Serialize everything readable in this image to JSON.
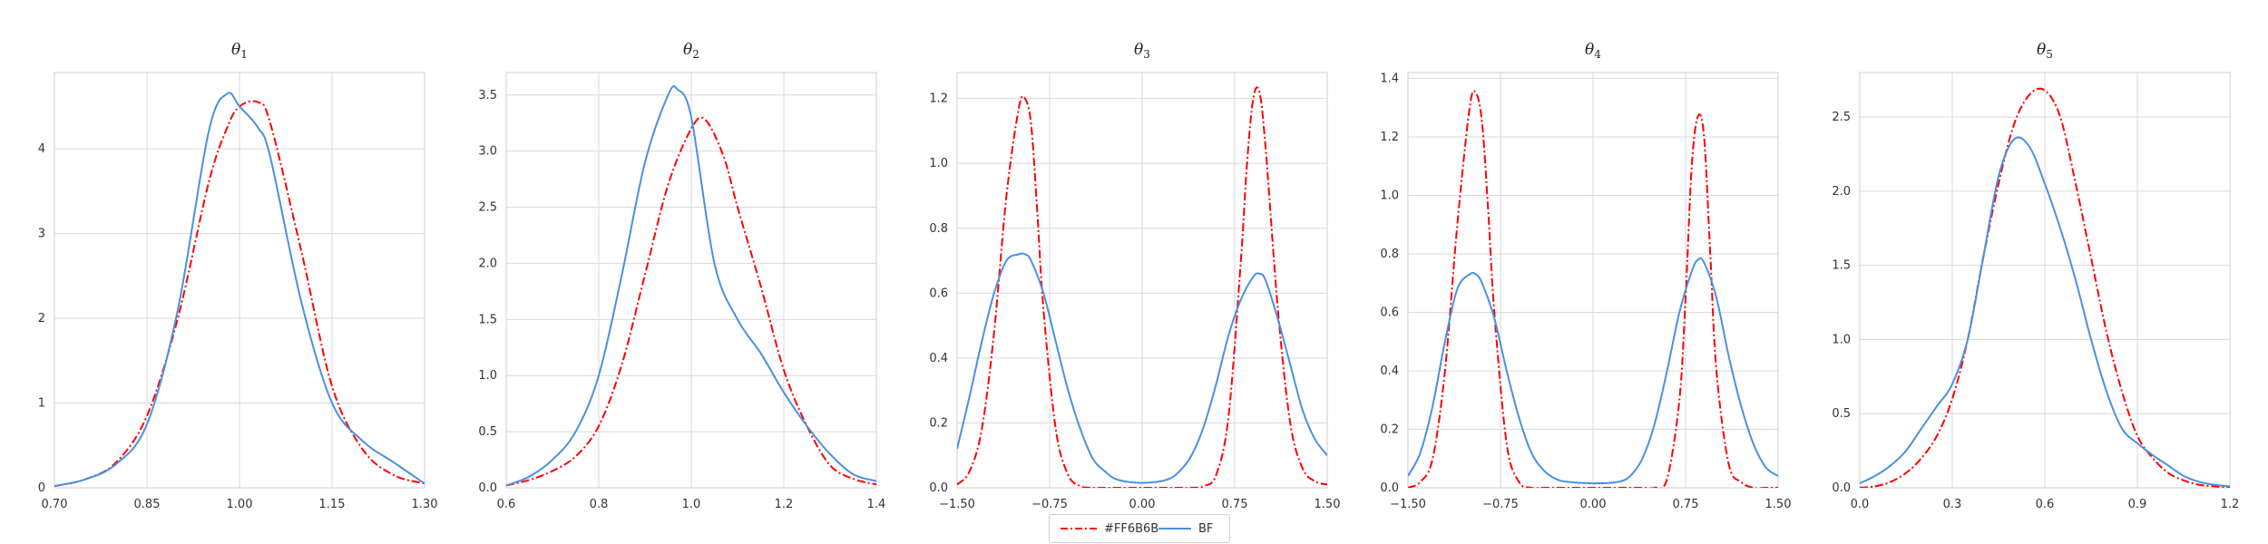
{
  "chart_data": [
    {
      "type": "line",
      "title": "θ1",
      "title_base": "θ",
      "title_sub": "1",
      "xlabel": "",
      "ylabel": "",
      "xlim": [
        0.7,
        1.3
      ],
      "ylim": [
        0,
        4.9
      ],
      "xticks": [
        0.7,
        0.85,
        1.0,
        1.15,
        1.3
      ],
      "xtick_labels": [
        "0.70",
        "0.85",
        "1.00",
        "1.15",
        "1.30"
      ],
      "yticks": [
        0,
        1,
        2,
        3,
        4
      ],
      "ytick_labels": [
        "0",
        "1",
        "2",
        "3",
        "4"
      ],
      "grid": true,
      "series": [
        {
          "name": "#FF6B6B",
          "color": "#ff0000",
          "style": "dashdot",
          "x": [
            0.7,
            0.75,
            0.8,
            0.85,
            0.9,
            0.95,
            0.98,
            1.0,
            1.03,
            1.05,
            1.1,
            1.15,
            1.2,
            1.25,
            1.3
          ],
          "y": [
            0.02,
            0.1,
            0.3,
            0.85,
            2.0,
            3.6,
            4.25,
            4.5,
            4.55,
            4.3,
            2.8,
            1.2,
            0.45,
            0.15,
            0.05
          ]
        },
        {
          "name": "BF",
          "color": "#4a90e2",
          "style": "solid",
          "x": [
            0.7,
            0.75,
            0.8,
            0.85,
            0.9,
            0.95,
            0.98,
            1.0,
            1.03,
            1.05,
            1.1,
            1.15,
            1.2,
            1.25,
            1.3
          ],
          "y": [
            0.02,
            0.1,
            0.28,
            0.75,
            2.1,
            4.2,
            4.65,
            4.5,
            4.25,
            3.9,
            2.2,
            1.0,
            0.55,
            0.3,
            0.05
          ]
        }
      ]
    },
    {
      "type": "line",
      "title": "θ2",
      "title_base": "θ",
      "title_sub": "2",
      "xlabel": "",
      "ylabel": "",
      "xlim": [
        0.6,
        1.4
      ],
      "ylim": [
        0,
        3.7
      ],
      "xticks": [
        0.6,
        0.8,
        1.0,
        1.2,
        1.4
      ],
      "xtick_labels": [
        "0.6",
        "0.8",
        "1.0",
        "1.2",
        "1.4"
      ],
      "yticks": [
        0,
        0.5,
        1.0,
        1.5,
        2.0,
        2.5,
        3.0,
        3.5
      ],
      "ytick_labels": [
        "0.0",
        "0.5",
        "1.0",
        "1.5",
        "2.0",
        "2.5",
        "3.0",
        "3.5"
      ],
      "grid": true,
      "series": [
        {
          "name": "#FF6B6B",
          "color": "#ff0000",
          "style": "dashdot",
          "x": [
            0.6,
            0.65,
            0.7,
            0.75,
            0.8,
            0.85,
            0.9,
            0.95,
            1.0,
            1.03,
            1.07,
            1.1,
            1.15,
            1.2,
            1.25,
            1.3,
            1.35,
            1.4
          ],
          "y": [
            0.02,
            0.07,
            0.15,
            0.28,
            0.55,
            1.1,
            1.9,
            2.7,
            3.2,
            3.28,
            2.95,
            2.5,
            1.8,
            1.05,
            0.55,
            0.2,
            0.08,
            0.03
          ]
        },
        {
          "name": "BF",
          "color": "#4a90e2",
          "style": "solid",
          "x": [
            0.6,
            0.65,
            0.7,
            0.75,
            0.8,
            0.85,
            0.9,
            0.95,
            0.97,
            1.0,
            1.05,
            1.1,
            1.15,
            1.2,
            1.25,
            1.3,
            1.35,
            1.4
          ],
          "y": [
            0.02,
            0.1,
            0.25,
            0.5,
            1.0,
            1.9,
            2.9,
            3.5,
            3.55,
            3.3,
            2.0,
            1.5,
            1.2,
            0.85,
            0.55,
            0.3,
            0.12,
            0.06
          ]
        }
      ]
    },
    {
      "type": "line",
      "title": "θ3",
      "title_base": "θ",
      "title_sub": "3",
      "xlabel": "",
      "ylabel": "",
      "xlim": [
        -1.5,
        1.5
      ],
      "ylim": [
        0,
        1.28
      ],
      "xticks": [
        -1.5,
        -0.75,
        0.0,
        0.75,
        1.5
      ],
      "xtick_labels": [
        "−1.50",
        "−0.75",
        "0.00",
        "0.75",
        "1.50"
      ],
      "yticks": [
        0,
        0.2,
        0.4,
        0.6,
        0.8,
        1.0,
        1.2
      ],
      "ytick_labels": [
        "0.0",
        "0.2",
        "0.4",
        "0.6",
        "0.8",
        "1.0",
        "1.2"
      ],
      "grid": true,
      "series": [
        {
          "name": "#FF6B6B",
          "color": "#ff0000",
          "style": "dashdot",
          "x": [
            -1.5,
            -1.4,
            -1.3,
            -1.2,
            -1.1,
            -1.0,
            -0.95,
            -0.9,
            -0.85,
            -0.8,
            -0.7,
            -0.6,
            -0.5,
            -0.4,
            -0.3,
            0.0,
            0.3,
            0.4,
            0.5,
            0.6,
            0.7,
            0.8,
            0.85,
            0.9,
            0.95,
            1.0,
            1.1,
            1.2,
            1.3,
            1.4,
            1.5
          ],
          "y": [
            0.01,
            0.05,
            0.18,
            0.48,
            0.9,
            1.17,
            1.2,
            1.12,
            0.85,
            0.55,
            0.18,
            0.04,
            0.005,
            0.0,
            0.0,
            0.0,
            0.0,
            0.0,
            0.005,
            0.04,
            0.22,
            0.7,
            1.0,
            1.2,
            1.22,
            1.05,
            0.55,
            0.2,
            0.06,
            0.02,
            0.01
          ]
        },
        {
          "name": "BF",
          "color": "#4a90e2",
          "style": "solid",
          "x": [
            -1.5,
            -1.4,
            -1.3,
            -1.2,
            -1.1,
            -1.0,
            -0.95,
            -0.9,
            -0.8,
            -0.7,
            -0.6,
            -0.5,
            -0.4,
            -0.3,
            -0.2,
            0.0,
            0.2,
            0.3,
            0.4,
            0.5,
            0.6,
            0.7,
            0.8,
            0.9,
            0.95,
            1.0,
            1.1,
            1.2,
            1.3,
            1.4,
            1.5
          ],
          "y": [
            0.12,
            0.28,
            0.45,
            0.6,
            0.7,
            0.72,
            0.72,
            0.7,
            0.6,
            0.45,
            0.3,
            0.18,
            0.09,
            0.05,
            0.025,
            0.015,
            0.025,
            0.05,
            0.1,
            0.19,
            0.32,
            0.47,
            0.58,
            0.65,
            0.66,
            0.64,
            0.52,
            0.38,
            0.24,
            0.15,
            0.1
          ]
        }
      ]
    },
    {
      "type": "line",
      "title": "θ4",
      "title_base": "θ",
      "title_sub": "4",
      "xlabel": "",
      "ylabel": "",
      "xlim": [
        -1.5,
        1.5
      ],
      "ylim": [
        0,
        1.42
      ],
      "xticks": [
        -1.5,
        -0.75,
        0.0,
        0.75,
        1.5
      ],
      "xtick_labels": [
        "−1.50",
        "−0.75",
        "0.00",
        "0.75",
        "1.50"
      ],
      "yticks": [
        0,
        0.2,
        0.4,
        0.6,
        0.8,
        1.0,
        1.2,
        1.4
      ],
      "ytick_labels": [
        "0.0",
        "0.2",
        "0.4",
        "0.6",
        "0.8",
        "1.0",
        "1.2",
        "1.4"
      ],
      "grid": true,
      "series": [
        {
          "name": "#FF6B6B",
          "color": "#ff0000",
          "style": "dashdot",
          "x": [
            -1.5,
            -1.4,
            -1.3,
            -1.2,
            -1.1,
            -1.0,
            -0.95,
            -0.9,
            -0.85,
            -0.8,
            -0.7,
            -0.6,
            -0.5,
            -0.4,
            0.0,
            0.4,
            0.5,
            0.6,
            0.7,
            0.75,
            0.8,
            0.85,
            0.9,
            0.95,
            1.0,
            1.1,
            1.2,
            1.3,
            1.4,
            1.5
          ],
          "y": [
            0.0,
            0.02,
            0.1,
            0.4,
            0.9,
            1.3,
            1.35,
            1.25,
            0.95,
            0.6,
            0.15,
            0.02,
            0.0,
            0.0,
            0.0,
            0.0,
            0.0,
            0.03,
            0.3,
            0.65,
            1.1,
            1.27,
            1.2,
            0.8,
            0.4,
            0.08,
            0.02,
            0.0,
            0.0,
            0.0
          ]
        },
        {
          "name": "BF",
          "color": "#4a90e2",
          "style": "solid",
          "x": [
            -1.5,
            -1.4,
            -1.3,
            -1.2,
            -1.1,
            -1.0,
            -0.95,
            -0.9,
            -0.8,
            -0.7,
            -0.6,
            -0.5,
            -0.4,
            -0.3,
            -0.2,
            0.0,
            0.2,
            0.3,
            0.4,
            0.5,
            0.6,
            0.7,
            0.8,
            0.85,
            0.9,
            1.0,
            1.1,
            1.2,
            1.3,
            1.4,
            1.5
          ],
          "y": [
            0.04,
            0.12,
            0.28,
            0.5,
            0.68,
            0.73,
            0.73,
            0.7,
            0.58,
            0.4,
            0.24,
            0.12,
            0.06,
            0.03,
            0.02,
            0.015,
            0.02,
            0.04,
            0.1,
            0.22,
            0.4,
            0.6,
            0.74,
            0.78,
            0.77,
            0.65,
            0.45,
            0.28,
            0.15,
            0.07,
            0.04
          ]
        }
      ]
    },
    {
      "type": "line",
      "title": "θ5",
      "title_base": "θ",
      "title_sub": "5",
      "xlabel": "",
      "ylabel": "",
      "xlim": [
        0.0,
        1.2
      ],
      "ylim": [
        0,
        2.8
      ],
      "xticks": [
        0.0,
        0.3,
        0.6,
        0.9,
        1.2
      ],
      "xtick_labels": [
        "0.0",
        "0.3",
        "0.6",
        "0.9",
        "1.2"
      ],
      "yticks": [
        0,
        0.5,
        1.0,
        1.5,
        2.0,
        2.5
      ],
      "ytick_labels": [
        "0.0",
        "0.5",
        "1.0",
        "1.5",
        "2.0",
        "2.5"
      ],
      "grid": true,
      "series": [
        {
          "name": "#FF6B6B",
          "color": "#ff0000",
          "style": "dashdot",
          "x": [
            0.0,
            0.05,
            0.1,
            0.15,
            0.2,
            0.25,
            0.3,
            0.35,
            0.4,
            0.45,
            0.5,
            0.55,
            0.6,
            0.65,
            0.7,
            0.75,
            0.8,
            0.85,
            0.9,
            0.95,
            1.0,
            1.05,
            1.1,
            1.15,
            1.2
          ],
          "y": [
            0.0,
            0.01,
            0.04,
            0.1,
            0.2,
            0.35,
            0.6,
            1.0,
            1.55,
            2.05,
            2.45,
            2.65,
            2.68,
            2.5,
            2.05,
            1.55,
            1.05,
            0.65,
            0.35,
            0.2,
            0.1,
            0.05,
            0.02,
            0.01,
            0.0
          ]
        },
        {
          "name": "BF",
          "color": "#4a90e2",
          "style": "solid",
          "x": [
            0.0,
            0.05,
            0.1,
            0.15,
            0.2,
            0.25,
            0.3,
            0.35,
            0.4,
            0.45,
            0.5,
            0.55,
            0.6,
            0.65,
            0.7,
            0.75,
            0.8,
            0.85,
            0.9,
            0.95,
            1.0,
            1.05,
            1.1,
            1.15,
            1.2
          ],
          "y": [
            0.03,
            0.08,
            0.15,
            0.25,
            0.4,
            0.55,
            0.7,
            1.0,
            1.55,
            2.1,
            2.35,
            2.3,
            2.05,
            1.75,
            1.4,
            1.0,
            0.65,
            0.4,
            0.3,
            0.22,
            0.15,
            0.08,
            0.04,
            0.02,
            0.01
          ]
        }
      ]
    }
  ],
  "legend": {
    "placement": "bottom-center",
    "items": [
      {
        "label": "#FF6B6B",
        "color": "#ff0000",
        "style": "dashdot"
      },
      {
        "label": "BF",
        "color": "#4a90e2",
        "style": "solid"
      }
    ]
  },
  "colors": {
    "grid": "#d9d9d9",
    "spine": "#cfcfcf",
    "tick_text": "#333333"
  }
}
